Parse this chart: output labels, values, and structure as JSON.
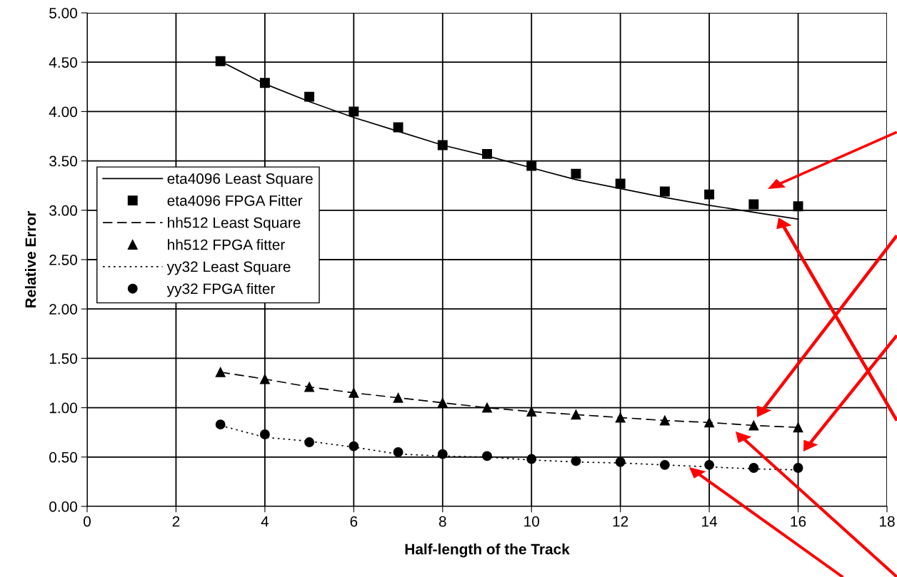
{
  "chart_data": {
    "type": "line",
    "xlabel": "Half-length of the Track",
    "ylabel": "Relative Error",
    "x": [
      3,
      4,
      5,
      6,
      7,
      8,
      9,
      10,
      11,
      12,
      13,
      14,
      15,
      16
    ],
    "xlim": [
      0,
      18
    ],
    "xticks": [
      0,
      2,
      4,
      6,
      8,
      10,
      12,
      14,
      16,
      18
    ],
    "ylim": [
      0,
      5
    ],
    "yticks": [
      {
        "value": 0,
        "label": "0.00"
      },
      {
        "value": 0.5,
        "label": "0.50"
      },
      {
        "value": 1,
        "label": "1.00"
      },
      {
        "value": 1.5,
        "label": "1.50"
      },
      {
        "value": 2,
        "label": "2.00"
      },
      {
        "value": 2.5,
        "label": "2.50"
      },
      {
        "value": 3,
        "label": "3.00"
      },
      {
        "value": 3.5,
        "label": "3.50"
      },
      {
        "value": 4,
        "label": "4.00"
      },
      {
        "value": 4.5,
        "label": "4.50"
      },
      {
        "value": 5,
        "label": "5.00"
      }
    ],
    "grid": true,
    "legend": "left",
    "series": [
      {
        "name": "eta4096 Least Square",
        "line_style": "solid",
        "color": "#000000",
        "values": [
          4.51,
          4.28,
          4.1,
          3.94,
          3.8,
          3.66,
          3.55,
          3.43,
          3.31,
          3.22,
          3.13,
          3.05,
          2.98,
          2.91
        ]
      },
      {
        "name": "eta4096 FPGA Fitter",
        "type": "scatter",
        "marker": "square",
        "color": "#000000",
        "values": [
          4.51,
          4.29,
          4.15,
          4.0,
          3.84,
          3.66,
          3.57,
          3.45,
          3.37,
          3.27,
          3.19,
          3.16,
          3.06,
          3.04
        ]
      },
      {
        "name": "hh512 Least Square",
        "line_style": "dashed",
        "color": "#000000",
        "values": [
          1.36,
          1.29,
          1.21,
          1.15,
          1.1,
          1.05,
          1.0,
          0.96,
          0.93,
          0.9,
          0.87,
          0.85,
          0.82,
          0.8
        ]
      },
      {
        "name": "hh512 FPGA fitter",
        "type": "scatter",
        "marker": "triangle",
        "color": "#000000",
        "values": [
          1.36,
          1.29,
          1.21,
          1.15,
          1.1,
          1.05,
          1.0,
          0.96,
          0.93,
          0.9,
          0.87,
          0.85,
          0.82,
          0.8
        ]
      },
      {
        "name": "yy32 Least Square",
        "line_style": "dotted",
        "color": "#000000",
        "values": [
          0.82,
          0.7,
          0.66,
          0.6,
          0.53,
          0.51,
          0.5,
          0.47,
          0.45,
          0.44,
          0.42,
          0.4,
          0.38,
          0.37
        ]
      },
      {
        "name": "yy32 FPGA fitter",
        "type": "scatter",
        "marker": "circle",
        "color": "#000000",
        "values": [
          0.83,
          0.73,
          0.65,
          0.61,
          0.55,
          0.53,
          0.51,
          0.48,
          0.46,
          0.45,
          0.42,
          0.42,
          0.39,
          0.39
        ]
      }
    ]
  }
}
